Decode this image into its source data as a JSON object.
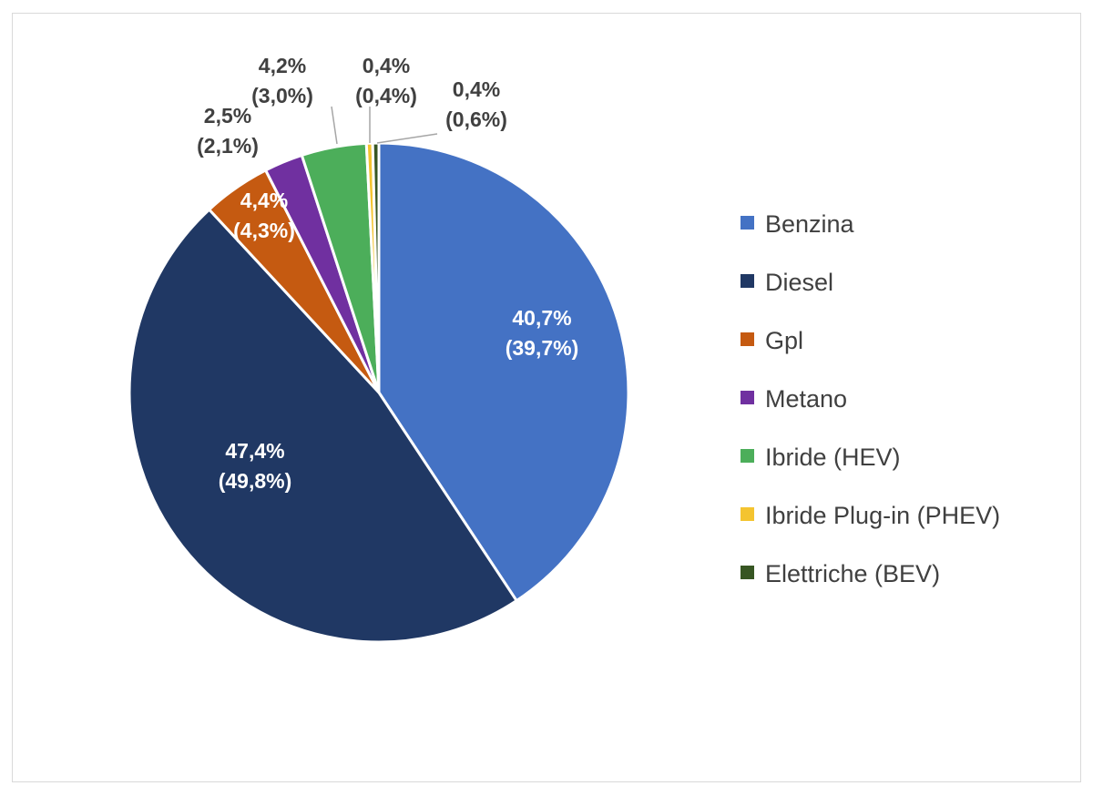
{
  "chart_data": {
    "type": "pie",
    "start": "top",
    "direction": "clockwise",
    "legend_position": "right",
    "slices": [
      {
        "name": "Benzina",
        "value": 40.7,
        "label": "40,7%",
        "sublabel": "(39,7%)",
        "color": "#4472c4"
      },
      {
        "name": "Diesel",
        "value": 47.4,
        "label": "47,4%",
        "sublabel": "(49,8%)",
        "color": "#203864"
      },
      {
        "name": "Gpl",
        "value": 4.4,
        "label": "4,4%",
        "sublabel": "(4,3%)",
        "color": "#c55a11"
      },
      {
        "name": "Metano",
        "value": 2.5,
        "label": "2,5%",
        "sublabel": "(2,1%)",
        "color": "#7030a0"
      },
      {
        "name": "Ibride (HEV)",
        "value": 4.2,
        "label": "4,2%",
        "sublabel": "(3,0%)",
        "color": "#4cae5a"
      },
      {
        "name": "Ibride Plug-in  (PHEV)",
        "value": 0.4,
        "label": "0,4%",
        "sublabel": "(0,4%)",
        "color": "#f4c430"
      },
      {
        "name": "Elettriche (BEV)",
        "value": 0.4,
        "label": "0,4%",
        "sublabel": "(0,6%)",
        "color": "#375623"
      }
    ]
  }
}
